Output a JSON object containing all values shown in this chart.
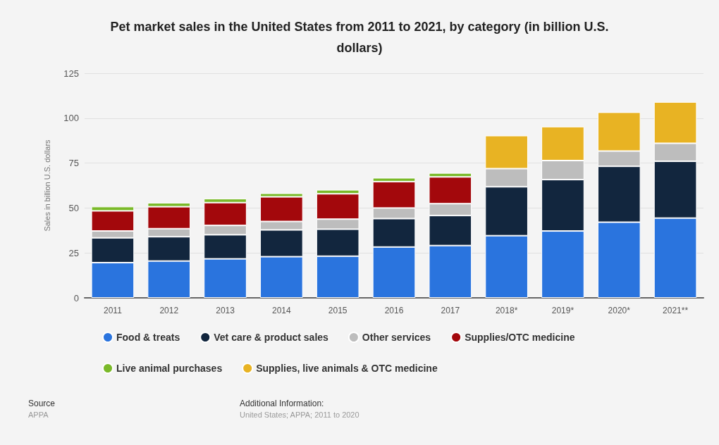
{
  "chart_data": {
    "type": "bar",
    "title": "Pet market sales in the United States from 2011 to 2021, by category (in billion U.S.\ndollars)",
    "ylabel": "Sales in billion U.S. dollars",
    "categories": [
      "2011",
      "2012",
      "2013",
      "2014",
      "2015",
      "2016",
      "2017",
      "2018*",
      "2019*",
      "2020*",
      "2021**"
    ],
    "stacked": true,
    "series": [
      {
        "name": "Food & treats",
        "color": "#2a74de",
        "values": [
          19.6,
          20.5,
          21.7,
          22.9,
          23.2,
          28.3,
          29.1,
          34.6,
          37.2,
          42.1,
          44.4
        ]
      },
      {
        "name": "Vet care & product sales",
        "color": "#12263e",
        "values": [
          13.8,
          13.5,
          13.4,
          14.9,
          15.0,
          15.8,
          16.7,
          27.2,
          28.6,
          31.1,
          31.6
        ]
      },
      {
        "name": "Other services",
        "color": "#bdbdbd",
        "values": [
          3.8,
          4.5,
          5.2,
          4.7,
          5.6,
          5.9,
          6.6,
          10.1,
          10.6,
          8.5,
          10.0
        ]
      },
      {
        "name": "Supplies/OTC medicine",
        "color": "#a3080c",
        "values": [
          11.2,
          12.2,
          12.7,
          13.7,
          14.1,
          14.7,
          14.9,
          null,
          null,
          null,
          null
        ]
      },
      {
        "name": "Live animal purchases",
        "color": "#7ab929",
        "values": [
          2.4,
          2.2,
          2.2,
          2.0,
          2.2,
          2.1,
          2.2,
          null,
          null,
          null,
          null
        ]
      },
      {
        "name": "Supplies, live animals & OTC medicine",
        "color": "#e8b323",
        "values": [
          null,
          null,
          null,
          null,
          null,
          null,
          null,
          18.4,
          18.9,
          21.6,
          23.0
        ]
      }
    ],
    "ylim": [
      0,
      125
    ],
    "yticks": [
      0,
      25,
      50,
      75,
      100,
      125
    ],
    "grid": "y",
    "legend": "bottom",
    "annotations": [
      "Source",
      "APPA",
      "Additional Information:",
      "United States; APPA; 2011 to 2020"
    ]
  }
}
